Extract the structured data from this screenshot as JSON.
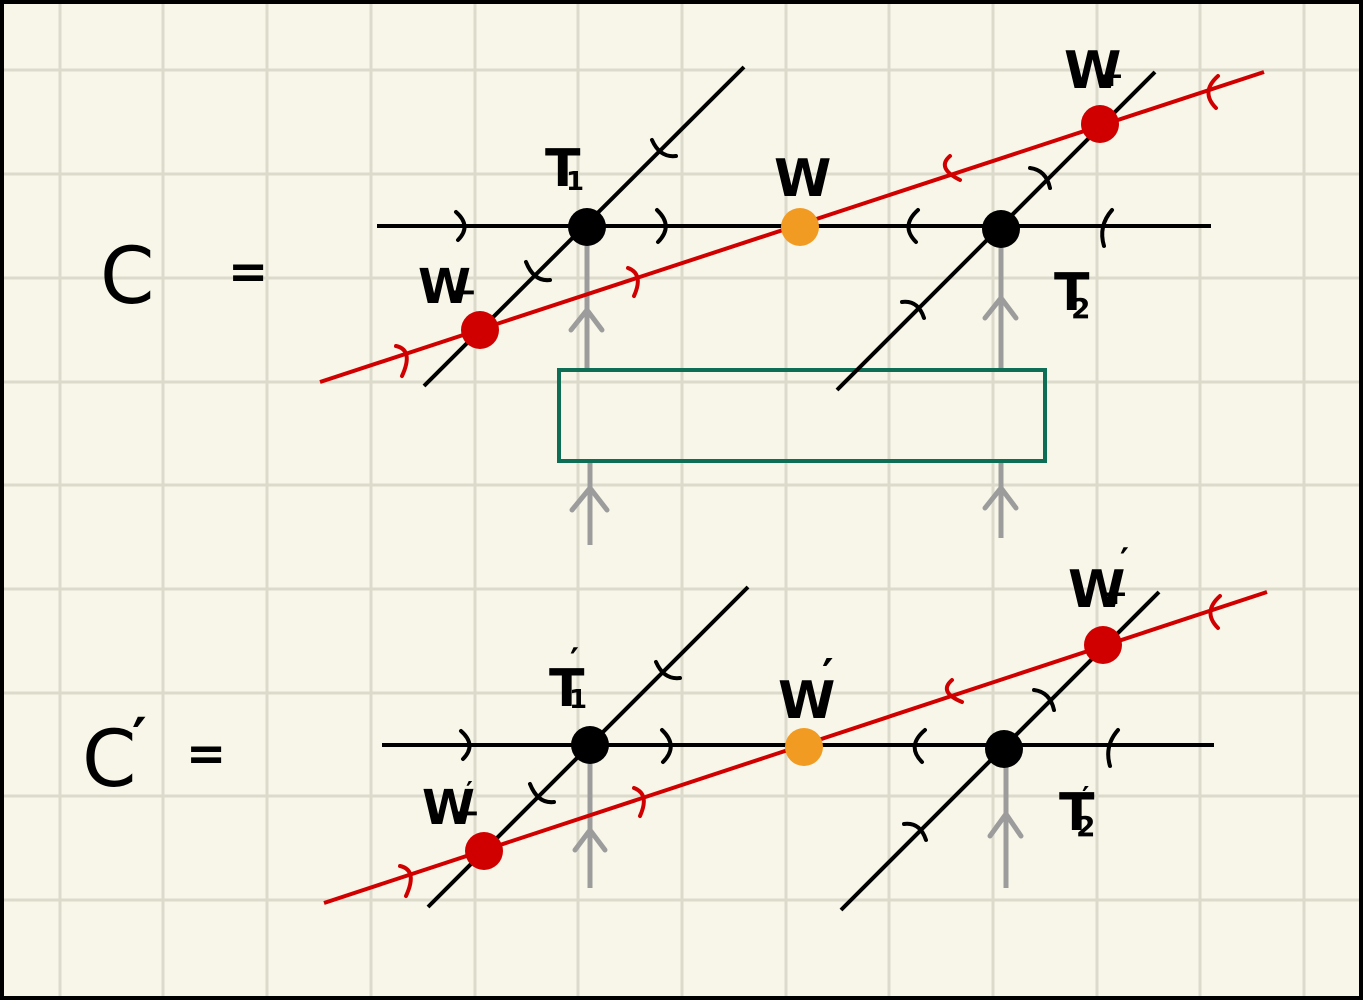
{
  "diagram": {
    "top": {
      "lhs": "C",
      "eq": "=",
      "t1": {
        "base": "T",
        "sub": "1",
        "prime": ""
      },
      "t2": {
        "base": "T",
        "sub": "2",
        "prime": ""
      },
      "w": {
        "base": "W",
        "sub": "",
        "prime": ""
      },
      "wplus": {
        "base": "W",
        "sub": "+",
        "prime": ""
      },
      "wminus": {
        "base": "W",
        "sub": "−",
        "prime": ""
      }
    },
    "bottom": {
      "lhs": "C",
      "lhs_prime": "′",
      "eq": "=",
      "t1": {
        "base": "T",
        "sub": "1",
        "prime": "′"
      },
      "t2": {
        "base": "T",
        "sub": "2",
        "prime": "′"
      },
      "w": {
        "base": "W",
        "sub": "",
        "prime": "′"
      },
      "wplus": {
        "base": "W",
        "sub": "+",
        "prime": "′"
      },
      "wminus": {
        "base": "W",
        "sub": "−",
        "prime": "′"
      }
    },
    "colors": {
      "background": "#f8f6e8",
      "grid": "#dcdacb",
      "line": "#000000",
      "red": "#d10000",
      "orange": "#f29b22",
      "gray": "#9c9c9c",
      "green": "#0d6e55"
    }
  }
}
